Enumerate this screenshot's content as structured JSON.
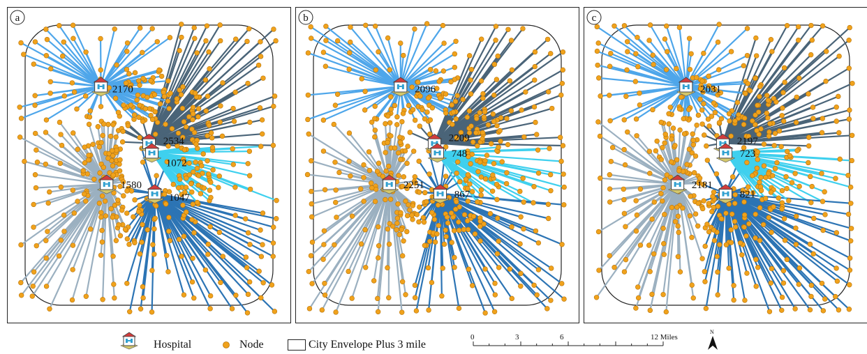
{
  "colors": {
    "node": "#f0a21c",
    "nodeStroke": "#b8740a",
    "blueLight": "#4ea6ea",
    "slate": "#4a6478",
    "cyan": "#3fd0ee",
    "grey": "#9bb0c0",
    "blueDark": "#2c74b4",
    "envelope": "#222222"
  },
  "panels": [
    {
      "id": "a",
      "label": "a",
      "hospitals": [
        {
          "value": "2170",
          "xf": 0.33,
          "yf": 0.25,
          "lxf": 0.37,
          "lyf": 0.255,
          "color": "blueLight"
        },
        {
          "value": "2534",
          "xf": 0.5,
          "yf": 0.43,
          "lxf": 0.55,
          "lyf": 0.42,
          "color": "slate"
        },
        {
          "value": "1072",
          "xf": 0.51,
          "yf": 0.46,
          "lxf": 0.56,
          "lyf": 0.49,
          "color": "cyan"
        },
        {
          "value": "1580",
          "xf": 0.35,
          "yf": 0.56,
          "lxf": 0.4,
          "lyf": 0.56,
          "color": "grey"
        },
        {
          "value": "1047",
          "xf": 0.52,
          "yf": 0.59,
          "lxf": 0.57,
          "lyf": 0.6,
          "color": "blueDark"
        }
      ]
    },
    {
      "id": "b",
      "label": "b",
      "hospitals": [
        {
          "value": "2096",
          "xf": 0.37,
          "yf": 0.25,
          "lxf": 0.42,
          "lyf": 0.255,
          "color": "blueLight"
        },
        {
          "value": "2209",
          "xf": 0.49,
          "yf": 0.43,
          "lxf": 0.54,
          "lyf": 0.41,
          "color": "slate"
        },
        {
          "value": "748",
          "xf": 0.5,
          "yf": 0.46,
          "lxf": 0.55,
          "lyf": 0.46,
          "color": "cyan"
        },
        {
          "value": "2251",
          "xf": 0.33,
          "yf": 0.56,
          "lxf": 0.38,
          "lyf": 0.56,
          "color": "grey"
        },
        {
          "value": "867",
          "xf": 0.51,
          "yf": 0.59,
          "lxf": 0.56,
          "lyf": 0.59,
          "color": "blueDark"
        }
      ]
    },
    {
      "id": "c",
      "label": "c",
      "hospitals": [
        {
          "value": "2031",
          "xf": 0.36,
          "yf": 0.25,
          "lxf": 0.41,
          "lyf": 0.255,
          "color": "blueLight"
        },
        {
          "value": "2197",
          "xf": 0.49,
          "yf": 0.43,
          "lxf": 0.54,
          "lyf": 0.42,
          "color": "slate"
        },
        {
          "value": "723",
          "xf": 0.5,
          "yf": 0.46,
          "lxf": 0.55,
          "lyf": 0.46,
          "color": "cyan"
        },
        {
          "value": "2181",
          "xf": 0.33,
          "yf": 0.56,
          "lxf": 0.38,
          "lyf": 0.56,
          "color": "grey"
        },
        {
          "value": "821",
          "xf": 0.5,
          "yf": 0.59,
          "lxf": 0.55,
          "lyf": 0.59,
          "color": "blueDark"
        }
      ]
    }
  ],
  "legend": {
    "hospital": "Hospital",
    "node": "Node",
    "envelope": "City Envelope Plus 3 mile",
    "scale_ticks": [
      "0",
      "3",
      "6",
      "12 Miles"
    ],
    "north": "N"
  }
}
